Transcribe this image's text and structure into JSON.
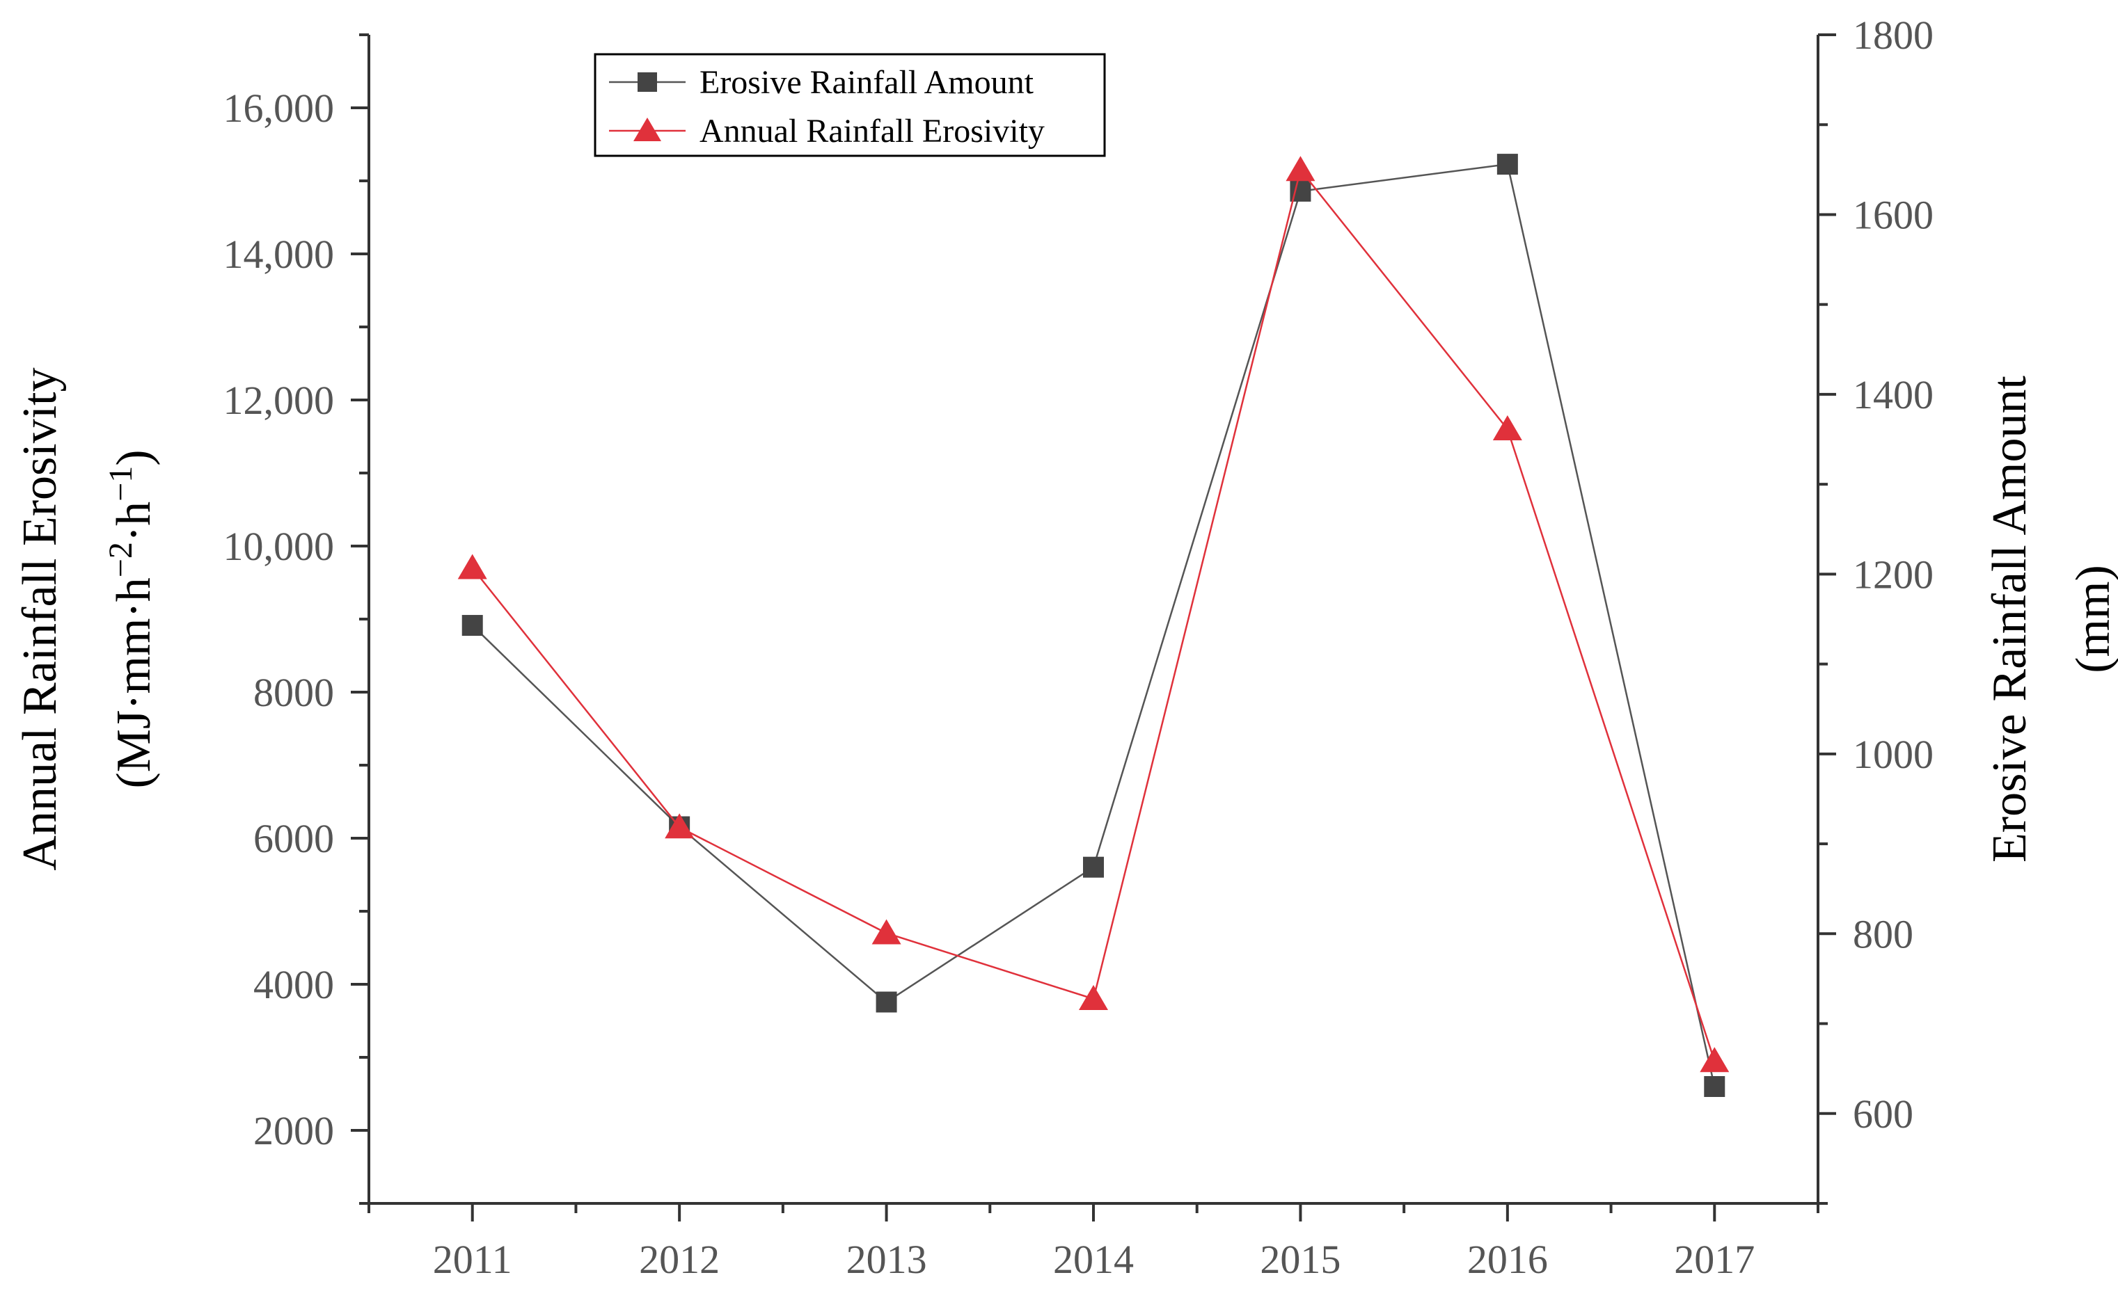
{
  "chart_data": {
    "type": "line",
    "categories": [
      "2011",
      "2012",
      "2013",
      "2014",
      "2015",
      "2016",
      "2017"
    ],
    "series": [
      {
        "name": "Erosive Rainfall Amount",
        "axis": "right",
        "marker": "square",
        "color": "#444444",
        "line_color": "#555555",
        "values": [
          1143,
          919,
          724,
          874,
          1626,
          1656,
          630
        ]
      },
      {
        "name": "Annual Rainfall Erosivity",
        "axis": "left",
        "marker": "triangle",
        "color": "#e0313b",
        "line_color": "#e0313b",
        "values": [
          9700,
          6150,
          4700,
          3800,
          15150,
          11600,
          2950
        ]
      }
    ],
    "y_left": {
      "label_line1": "Annual Rainfall Erosivity",
      "label_line2_prefix": "(MJ·mm·h",
      "label_line2_sup1": "−2",
      "label_line2_mid": "·h",
      "label_line2_sup2": "−1",
      "label_line2_suffix": ")",
      "ylim": [
        1000,
        17000
      ],
      "ticks": [
        2000,
        4000,
        6000,
        8000,
        10000,
        12000,
        14000,
        16000
      ],
      "tick_labels": [
        "2000",
        "4000",
        "6000",
        "8000",
        "10,000",
        "12,000",
        "14,000",
        "16,000"
      ]
    },
    "y_right": {
      "label_line1": "Erosive Rainfall Amount",
      "label_line2": "(mm)",
      "ylim": [
        500,
        1800
      ],
      "ticks": [
        600,
        800,
        1000,
        1200,
        1400,
        1600,
        1800
      ],
      "tick_labels": [
        "600",
        "800",
        "1000",
        "1200",
        "1400",
        "1600",
        "1800"
      ]
    },
    "x_axis": {
      "xlim": [
        2010.5,
        2017.5
      ]
    },
    "legend": {
      "position": "top-left",
      "entries": [
        "Erosive Rainfall Amount",
        "Annual Rainfall Erosivity"
      ]
    }
  }
}
